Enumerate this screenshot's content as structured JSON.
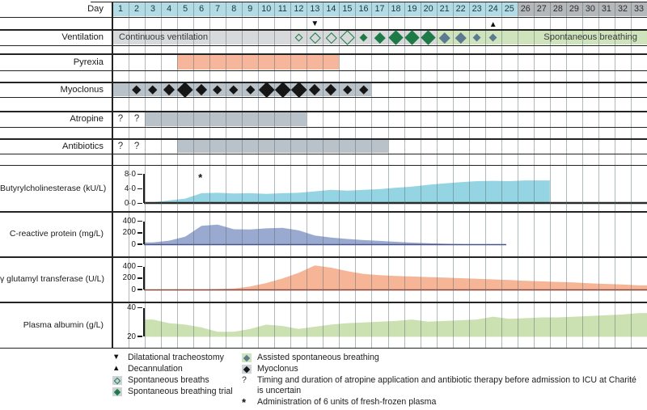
{
  "header": {
    "day_label": "Day",
    "days": [
      1,
      2,
      3,
      4,
      5,
      6,
      7,
      8,
      9,
      10,
      11,
      12,
      13,
      14,
      15,
      16,
      17,
      18,
      19,
      20,
      21,
      22,
      23,
      24,
      25,
      26,
      27,
      28,
      29,
      30,
      31,
      32,
      33
    ],
    "highlight_through_day": 25
  },
  "markers": [
    {
      "day": 13,
      "icon": "triangle-down",
      "symbol": "▼"
    },
    {
      "day": 24,
      "icon": "triangle-up",
      "symbol": "▲"
    }
  ],
  "rows": {
    "ventilation": {
      "label": "Ventilation",
      "segments": [
        {
          "label": "Continuous ventilation",
          "start_day": 1,
          "end_day": 20
        },
        {
          "label": "Spontaneous breathing",
          "start_day": 21,
          "end_day": 33
        }
      ],
      "diamonds": [
        {
          "day": 12,
          "type": "open",
          "size": "S"
        },
        {
          "day": 13,
          "type": "open",
          "size": "M"
        },
        {
          "day": 14,
          "type": "open",
          "size": "M"
        },
        {
          "day": 15,
          "type": "open",
          "size": "L"
        },
        {
          "day": 16,
          "type": "trial",
          "size": "S"
        },
        {
          "day": 17,
          "type": "trial",
          "size": "M"
        },
        {
          "day": 18,
          "type": "trial",
          "size": "L"
        },
        {
          "day": 19,
          "type": "trial",
          "size": "L"
        },
        {
          "day": 20,
          "type": "trial",
          "size": "L"
        },
        {
          "day": 21,
          "type": "assist",
          "size": "M"
        },
        {
          "day": 22,
          "type": "assist",
          "size": "M"
        },
        {
          "day": 23,
          "type": "assist",
          "size": "S"
        },
        {
          "day": 24,
          "type": "assist",
          "size": "S"
        }
      ]
    },
    "pyrexia": {
      "label": "Pyrexia",
      "bars": [
        {
          "start_day": 5,
          "end_day": 14
        }
      ]
    },
    "myoclonus": {
      "label": "Myoclonus",
      "bars": [
        {
          "start_day": 1,
          "end_day": 16
        }
      ],
      "diamonds": [
        {
          "day": 2,
          "size": "S"
        },
        {
          "day": 3,
          "size": "S"
        },
        {
          "day": 4,
          "size": "M"
        },
        {
          "day": 5,
          "size": "L"
        },
        {
          "day": 6,
          "size": "M"
        },
        {
          "day": 7,
          "size": "S"
        },
        {
          "day": 8,
          "size": "S"
        },
        {
          "day": 9,
          "size": "S"
        },
        {
          "day": 10,
          "size": "L"
        },
        {
          "day": 11,
          "size": "L"
        },
        {
          "day": 12,
          "size": "L"
        },
        {
          "day": 13,
          "size": "M"
        },
        {
          "day": 14,
          "size": "M"
        },
        {
          "day": 15,
          "size": "S"
        },
        {
          "day": 16,
          "size": "S"
        }
      ]
    },
    "atropine": {
      "label": "Atropine",
      "uncertain_marker": "?",
      "uncertain_days": [
        1,
        2
      ],
      "bars": [
        {
          "start_day": 3,
          "end_day": 12
        }
      ]
    },
    "antibiotics": {
      "label": "Antibiotics",
      "uncertain_marker": "?",
      "uncertain_days": [
        1,
        2
      ],
      "bars": [
        {
          "start_day": 5,
          "end_day": 17
        }
      ]
    }
  },
  "chart_data": [
    {
      "type": "area",
      "name": "butyrylcholinesterase",
      "label": "Butyrylcholinesterase (kU/L)",
      "color": "#8fd2e2",
      "ylim": [
        0,
        8
      ],
      "ytick_labels": [
        "8·0",
        "4·0",
        "0·0"
      ],
      "start_day": 3,
      "values": [
        0.2,
        0.7,
        1.2,
        2.7,
        2.8,
        2.6,
        2.7,
        2.5,
        2.7,
        2.8,
        3.2,
        3.6,
        3.4,
        3.6,
        3.8,
        4.2,
        4.5,
        5.0,
        5.4,
        5.7,
        6.0,
        6.1,
        6.0,
        6.2,
        6.2
      ],
      "annotation": {
        "day": 6,
        "symbol": "*"
      }
    },
    {
      "type": "area",
      "name": "c-reactive-protein",
      "label": "C-reactive protein (mg/L)",
      "color": "#95a4cd",
      "ylim": [
        0,
        400
      ],
      "ytick_labels": [
        "400",
        "200",
        "0"
      ],
      "start_day": 3,
      "values": [
        40,
        70,
        140,
        330,
        350,
        270,
        265,
        285,
        295,
        250,
        160,
        125,
        100,
        80,
        65,
        50,
        35,
        25,
        15,
        8,
        4,
        0
      ]
    },
    {
      "type": "area",
      "name": "gamma-glutamyl-transferase",
      "label": "γ glutamyl transferase (U/L)",
      "color": "#f5b190",
      "ylim": [
        0,
        400
      ],
      "ytick_labels": [
        "400",
        "200",
        "0"
      ],
      "start_day": 3,
      "values": [
        5,
        5,
        8,
        10,
        15,
        25,
        60,
        120,
        200,
        300,
        430,
        390,
        330,
        280,
        260,
        245,
        235,
        225,
        215,
        205,
        195,
        185,
        175,
        160,
        150,
        140,
        130,
        115,
        105,
        95,
        80
      ]
    },
    {
      "type": "area",
      "name": "plasma-albumin",
      "label": "Plasma albumin (g/L)",
      "color": "#c9dfad",
      "ylim": [
        20,
        40
      ],
      "ytick_labels": [
        "40",
        "20"
      ],
      "start_day": 3,
      "values": [
        32,
        29.5,
        28.5,
        26.5,
        23.5,
        23.5,
        25.5,
        28.5,
        27.5,
        25.5,
        27,
        28.5,
        29.5,
        30,
        30.5,
        31,
        32,
        30.5,
        31,
        31.5,
        32,
        34,
        32.5,
        33,
        33.5,
        33.5,
        34,
        34.5,
        35,
        35.5,
        36.5
      ]
    }
  ],
  "legend": {
    "left": [
      {
        "icon": "triangle-down",
        "symbol": "▼",
        "label": "Dilatational tracheostomy"
      },
      {
        "icon": "triangle-up",
        "symbol": "▲",
        "label": "Decannulation"
      },
      {
        "icon": "open-diamond",
        "label": "Spontaneous breaths"
      },
      {
        "icon": "filled-diamond",
        "label": "Spontaneous breathing trial"
      }
    ],
    "right": [
      {
        "icon": "steel-diamond",
        "label": "Assisted spontaneous breathing"
      },
      {
        "icon": "black-diamond",
        "label": "Myoclonus"
      },
      {
        "icon": "question",
        "symbol": "?",
        "label": "Timing and duration of atropine application and antibiotic therapy before admission to ICU at Charité is uncertain"
      },
      {
        "icon": "asterisk",
        "symbol": "*",
        "label": "Administration of 6 units of fresh-frozen plasma"
      }
    ]
  },
  "colors": {
    "header_day_cyan": "#b2dbe4",
    "header_day_gray": "#b5b8ba",
    "ventilation_gray": "#d7d9da",
    "ventilation_green": "#cfe3bc",
    "pyrexia_bar": "#f5b69b",
    "event_bar_gray": "#b9c2c9",
    "legend_square_gray": "#ccd2d6",
    "diamond_green": "#1e7b48",
    "diamond_steel": "#5d7b90",
    "diamond_black": "#161616"
  }
}
